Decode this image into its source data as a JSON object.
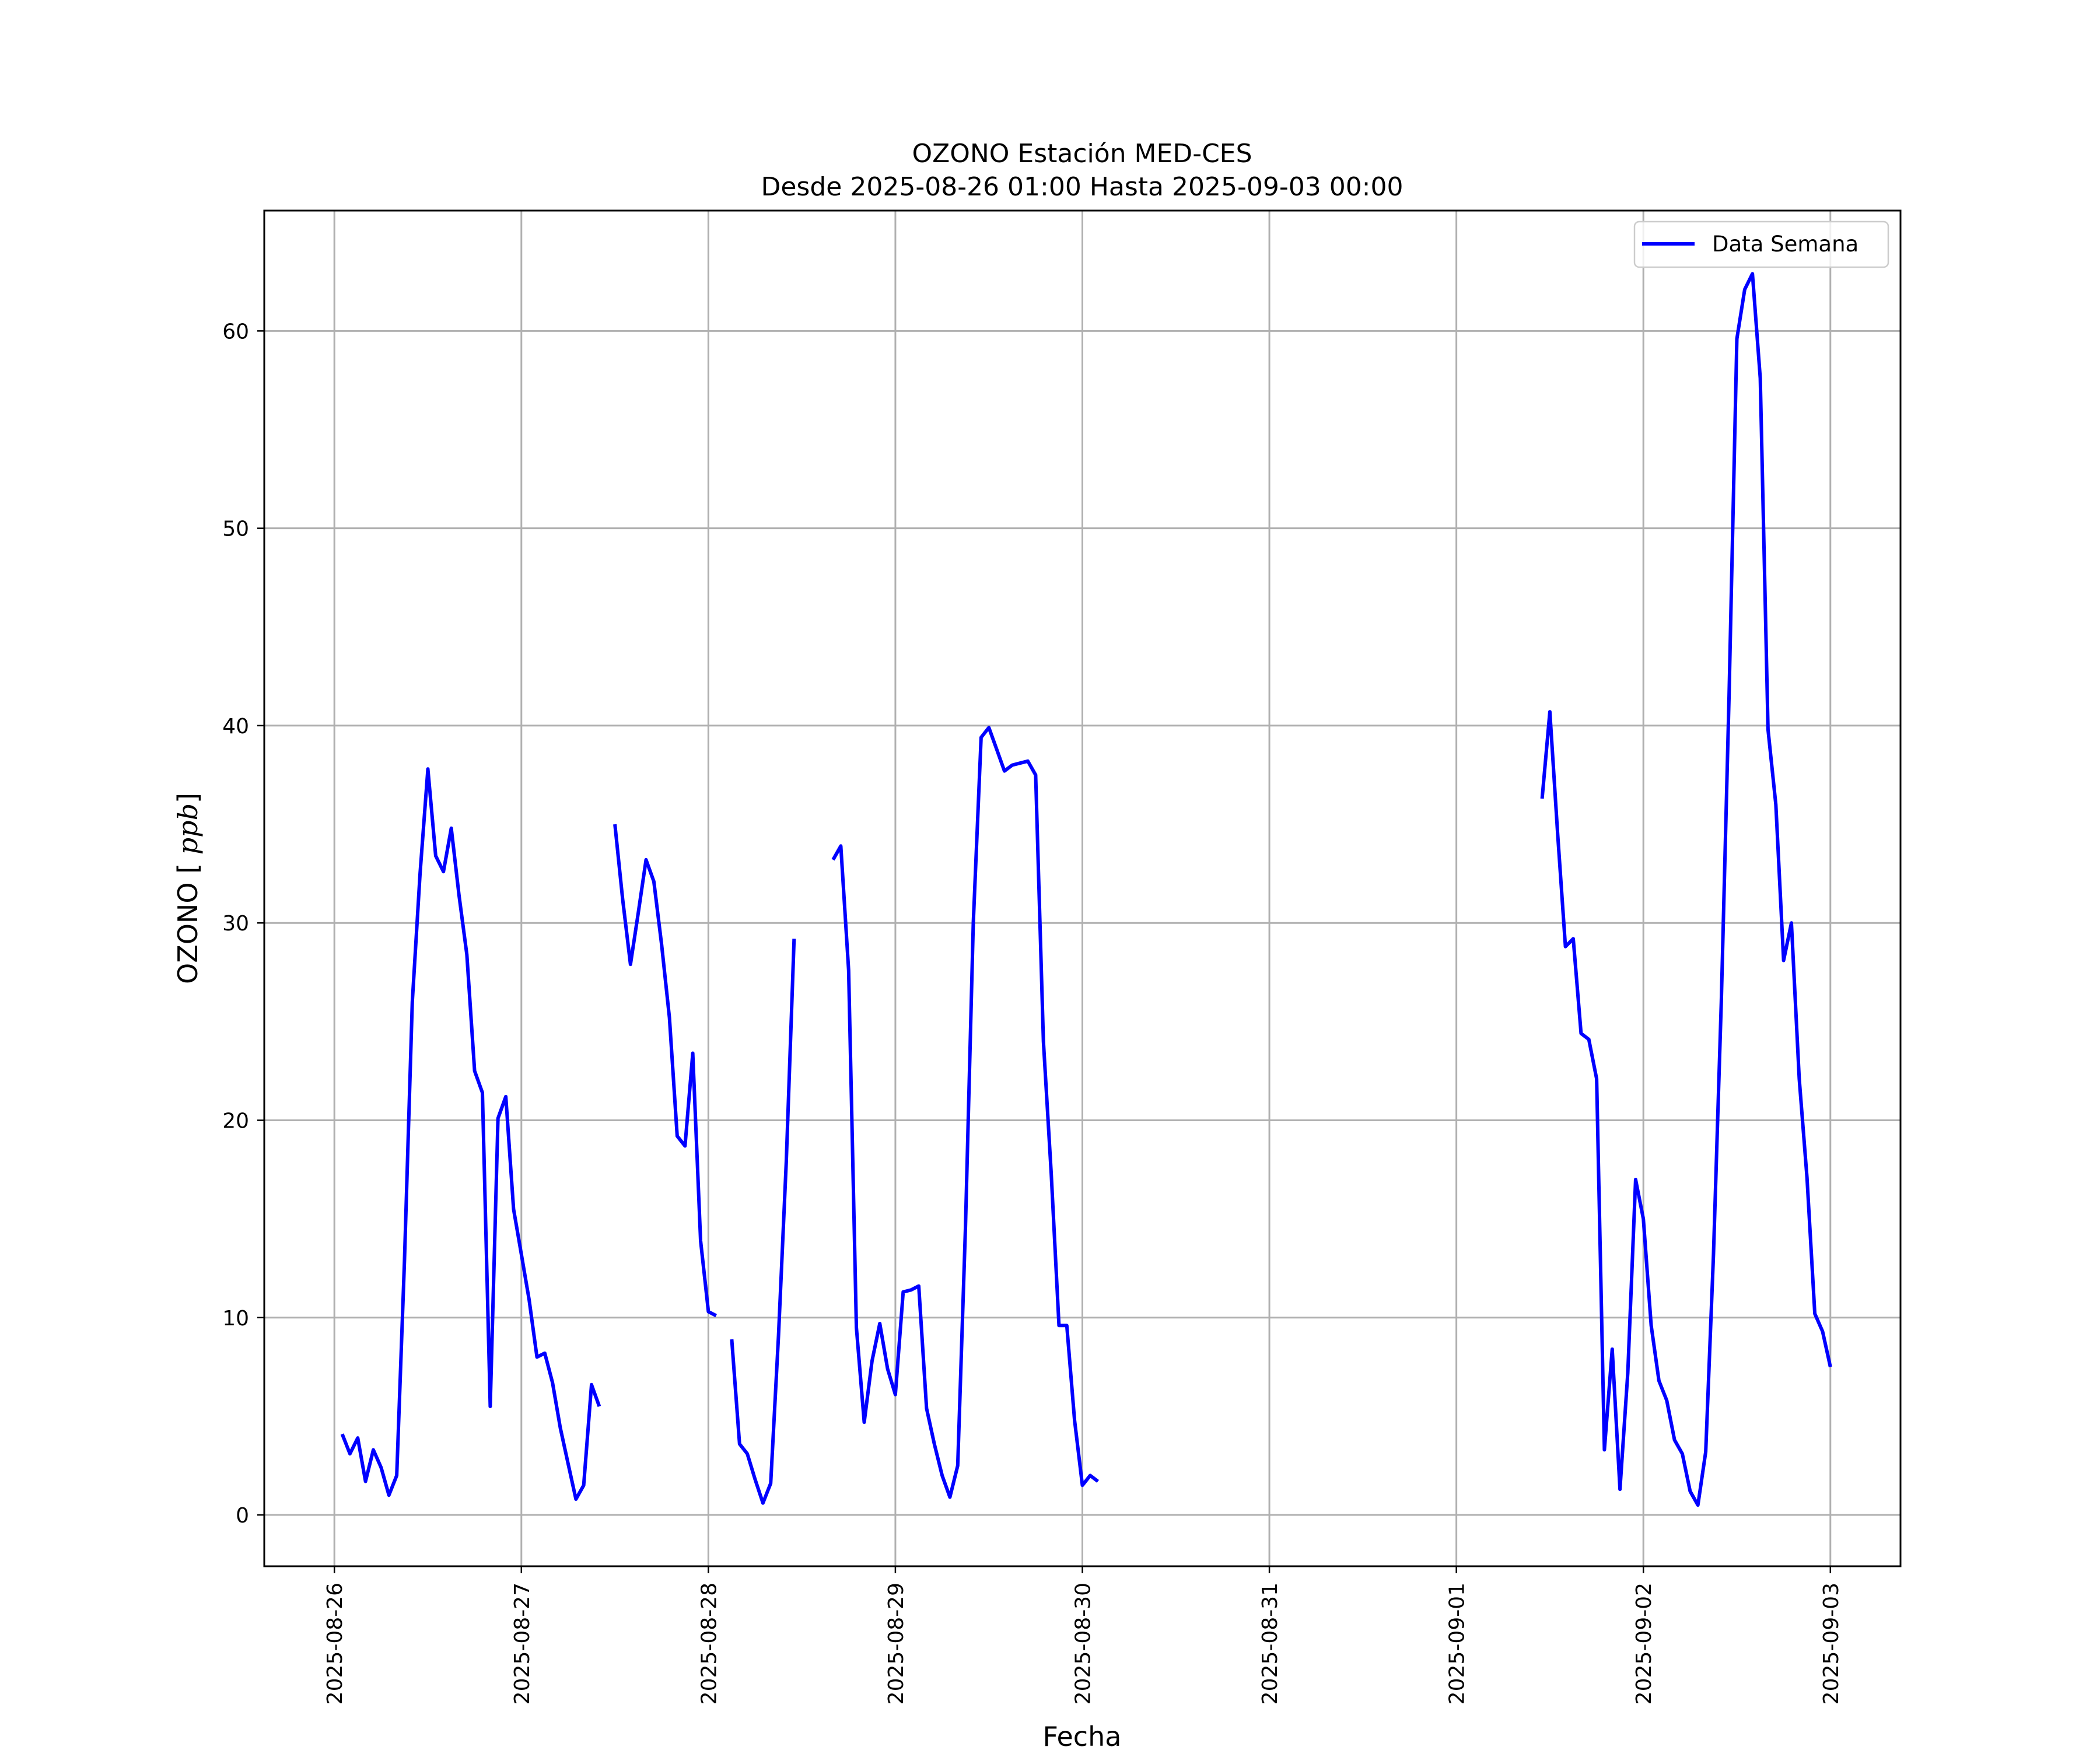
{
  "chart_data": {
    "type": "line",
    "title": "OZONO Estación MED-CES",
    "subtitle": "Desde 2025-08-26 01:00 Hasta 2025-09-03 00:00",
    "xlabel": "Fecha",
    "ylabel": "OZONO [ppb]",
    "ylabel_italic": "ppb",
    "ylim": [
      -2.6,
      66.1
    ],
    "xlim": [
      "2025-08-25 15:00",
      "2025-09-03 09:00"
    ],
    "grid": true,
    "legend_position": "upper right",
    "x_ticks": [
      "2025-08-26",
      "2025-08-27",
      "2025-08-28",
      "2025-08-29",
      "2025-08-30",
      "2025-08-31",
      "2025-09-01",
      "2025-09-02",
      "2025-09-03"
    ],
    "y_ticks": [
      0,
      10,
      20,
      30,
      40,
      50,
      60
    ],
    "series": [
      {
        "name": "Data Semana",
        "color": "#0000ff",
        "points": [
          [
            "2025-08-26 01:00",
            4.1
          ],
          [
            "2025-08-26 02:00",
            3.1
          ],
          [
            "2025-08-26 03:00",
            3.9
          ],
          [
            "2025-08-26 04:00",
            1.7
          ],
          [
            "2025-08-26 05:00",
            3.3
          ],
          [
            "2025-08-26 06:00",
            2.4
          ],
          [
            "2025-08-26 07:00",
            1.0
          ],
          [
            "2025-08-26 08:00",
            2.0
          ],
          [
            "2025-08-26 09:00",
            12.9
          ],
          [
            "2025-08-26 10:00",
            26.0
          ],
          [
            "2025-08-26 11:00",
            32.5
          ],
          [
            "2025-08-26 12:00",
            37.8
          ],
          [
            "2025-08-26 13:00",
            33.4
          ],
          [
            "2025-08-26 14:00",
            32.6
          ],
          [
            "2025-08-26 15:00",
            34.8
          ],
          [
            "2025-08-26 16:00",
            31.4
          ],
          [
            "2025-08-26 17:00",
            28.4
          ],
          [
            "2025-08-26 18:00",
            22.5
          ],
          [
            "2025-08-26 19:00",
            21.4
          ],
          [
            "2025-08-26 20:00",
            5.5
          ],
          [
            "2025-08-26 21:00",
            20.1
          ],
          [
            "2025-08-26 22:00",
            21.2
          ],
          [
            "2025-08-26 23:00",
            15.5
          ],
          [
            "2025-08-27 00:00",
            13.2
          ],
          [
            "2025-08-27 01:00",
            10.9
          ],
          [
            "2025-08-27 02:00",
            8.0
          ],
          [
            "2025-08-27 03:00",
            8.2
          ],
          [
            "2025-08-27 04:00",
            6.7
          ],
          [
            "2025-08-27 05:00",
            4.4
          ],
          [
            "2025-08-27 06:00",
            2.6
          ],
          [
            "2025-08-27 07:00",
            0.8
          ],
          [
            "2025-08-27 08:00",
            1.5
          ],
          [
            "2025-08-27 09:00",
            6.6
          ],
          [
            "2025-08-27 10:00",
            5.5
          ],
          [
            "2025-08-27 11:00",
            null
          ],
          [
            "2025-08-27 12:00",
            35.0
          ],
          [
            "2025-08-27 13:00",
            31.2
          ],
          [
            "2025-08-27 14:00",
            27.9
          ],
          [
            "2025-08-27 15:00",
            30.5
          ],
          [
            "2025-08-27 16:00",
            33.2
          ],
          [
            "2025-08-27 17:00",
            32.1
          ],
          [
            "2025-08-27 18:00",
            28.9
          ],
          [
            "2025-08-27 19:00",
            25.2
          ],
          [
            "2025-08-27 20:00",
            19.2
          ],
          [
            "2025-08-27 21:00",
            18.7
          ],
          [
            "2025-08-27 22:00",
            23.4
          ],
          [
            "2025-08-27 23:00",
            13.9
          ],
          [
            "2025-08-28 00:00",
            10.3
          ],
          [
            "2025-08-28 01:00",
            10.1
          ],
          [
            "2025-08-28 02:00",
            null
          ],
          [
            "2025-08-28 03:00",
            8.9
          ],
          [
            "2025-08-28 04:00",
            3.6
          ],
          [
            "2025-08-28 05:00",
            3.1
          ],
          [
            "2025-08-28 06:00",
            1.8
          ],
          [
            "2025-08-28 07:00",
            0.6
          ],
          [
            "2025-08-28 08:00",
            1.6
          ],
          [
            "2025-08-28 09:00",
            9.1
          ],
          [
            "2025-08-28 10:00",
            17.9
          ],
          [
            "2025-08-28 11:00",
            29.2
          ],
          [
            "2025-08-28 12:00",
            null
          ],
          [
            "2025-08-28 16:00",
            33.2
          ],
          [
            "2025-08-28 17:00",
            33.9
          ],
          [
            "2025-08-28 18:00",
            27.6
          ],
          [
            "2025-08-28 19:00",
            9.5
          ],
          [
            "2025-08-28 20:00",
            4.7
          ],
          [
            "2025-08-28 21:00",
            7.8
          ],
          [
            "2025-08-28 22:00",
            9.7
          ],
          [
            "2025-08-28 23:00",
            7.4
          ],
          [
            "2025-08-29 00:00",
            6.1
          ],
          [
            "2025-08-29 01:00",
            11.3
          ],
          [
            "2025-08-29 02:00",
            11.4
          ],
          [
            "2025-08-29 03:00",
            11.6
          ],
          [
            "2025-08-29 04:00",
            5.4
          ],
          [
            "2025-08-29 05:00",
            3.6
          ],
          [
            "2025-08-29 06:00",
            2.0
          ],
          [
            "2025-08-29 07:00",
            0.9
          ],
          [
            "2025-08-29 08:00",
            2.5
          ],
          [
            "2025-08-29 09:00",
            14.6
          ],
          [
            "2025-08-29 10:00",
            30.0
          ],
          [
            "2025-08-29 11:00",
            39.4
          ],
          [
            "2025-08-29 12:00",
            39.9
          ],
          [
            "2025-08-29 13:00",
            38.8
          ],
          [
            "2025-08-29 14:00",
            37.7
          ],
          [
            "2025-08-29 15:00",
            38.0
          ],
          [
            "2025-08-29 16:00",
            38.1
          ],
          [
            "2025-08-29 17:00",
            38.2
          ],
          [
            "2025-08-29 18:00",
            37.5
          ],
          [
            "2025-08-29 19:00",
            24.0
          ],
          [
            "2025-08-29 20:00",
            17.3
          ],
          [
            "2025-08-29 21:00",
            9.6
          ],
          [
            "2025-08-29 22:00",
            9.6
          ],
          [
            "2025-08-29 23:00",
            4.8
          ],
          [
            "2025-08-30 00:00",
            1.5
          ],
          [
            "2025-08-30 01:00",
            2.0
          ],
          [
            "2025-08-30 02:00",
            1.7
          ],
          [
            "2025-08-30 03:00",
            null
          ],
          [
            "2025-09-01 11:00",
            36.3
          ],
          [
            "2025-09-01 12:00",
            40.7
          ],
          [
            "2025-09-01 13:00",
            34.5
          ],
          [
            "2025-09-01 14:00",
            28.8
          ],
          [
            "2025-09-01 15:00",
            29.2
          ],
          [
            "2025-09-01 16:00",
            24.4
          ],
          [
            "2025-09-01 17:00",
            24.1
          ],
          [
            "2025-09-01 18:00",
            22.1
          ],
          [
            "2025-09-01 19:00",
            3.3
          ],
          [
            "2025-09-01 20:00",
            8.4
          ],
          [
            "2025-09-01 21:00",
            1.3
          ],
          [
            "2025-09-01 22:00",
            7.2
          ],
          [
            "2025-09-01 23:00",
            17.0
          ],
          [
            "2025-09-02 00:00",
            15.0
          ],
          [
            "2025-09-02 01:00",
            9.6
          ],
          [
            "2025-09-02 02:00",
            6.8
          ],
          [
            "2025-09-02 03:00",
            5.8
          ],
          [
            "2025-09-02 04:00",
            3.8
          ],
          [
            "2025-09-02 05:00",
            3.1
          ],
          [
            "2025-09-02 06:00",
            1.2
          ],
          [
            "2025-09-02 07:00",
            0.5
          ],
          [
            "2025-09-02 08:00",
            3.2
          ],
          [
            "2025-09-02 09:00",
            13.2
          ],
          [
            "2025-09-02 10:00",
            26.0
          ],
          [
            "2025-09-02 11:00",
            41.5
          ],
          [
            "2025-09-02 12:00",
            59.6
          ],
          [
            "2025-09-02 13:00",
            62.1
          ],
          [
            "2025-09-02 14:00",
            62.9
          ],
          [
            "2025-09-02 15:00",
            57.6
          ],
          [
            "2025-09-02 16:00",
            39.8
          ],
          [
            "2025-09-02 17:00",
            36.0
          ],
          [
            "2025-09-02 18:00",
            28.1
          ],
          [
            "2025-09-02 19:00",
            30.0
          ],
          [
            "2025-09-02 20:00",
            22.1
          ],
          [
            "2025-09-02 21:00",
            17.1
          ],
          [
            "2025-09-02 22:00",
            10.2
          ],
          [
            "2025-09-02 23:00",
            9.3
          ],
          [
            "2025-09-03 00:00",
            7.5
          ]
        ]
      }
    ]
  }
}
